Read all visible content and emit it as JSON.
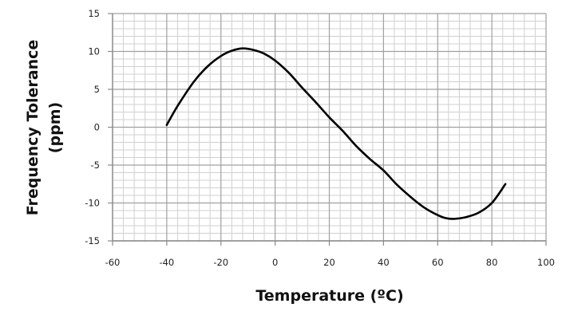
{
  "chart_data": {
    "type": "line",
    "title": "",
    "xlabel": "Temperature (ºC)",
    "ylabel_line1": "Frequency Tolerance",
    "ylabel_line2": "(ppm)",
    "xlim": [
      -60,
      100
    ],
    "ylim": [
      -15,
      15
    ],
    "x_ticks": [
      -60,
      -40,
      -20,
      0,
      20,
      40,
      60,
      80,
      100
    ],
    "y_ticks": [
      -15,
      -10,
      -5,
      0,
      5,
      10,
      15
    ],
    "x_tick_labels": [
      "-60",
      "-40",
      "-20",
      "0",
      "20",
      "40",
      "60",
      "80",
      "100"
    ],
    "y_tick_labels": [
      "-15",
      "-10",
      "-5",
      "0",
      "5",
      "10",
      "15"
    ],
    "grid": {
      "on": true,
      "x_major": 20,
      "x_minor": 4,
      "y_major": 5,
      "y_minor": 1
    },
    "legend": null,
    "series": [
      {
        "name": "Frequency Tolerance",
        "color": "#000000",
        "x": [
          -40,
          -36,
          -30,
          -25,
          -20,
          -16,
          -12,
          -8,
          -4,
          0,
          5,
          10,
          15,
          20,
          25,
          30,
          35,
          40,
          45,
          50,
          55,
          60,
          63,
          66,
          70,
          75,
          80,
          85
        ],
        "y": [
          0.3,
          2.8,
          6.0,
          8.0,
          9.4,
          10.1,
          10.4,
          10.2,
          9.7,
          8.8,
          7.2,
          5.2,
          3.3,
          1.3,
          -0.5,
          -2.5,
          -4.2,
          -5.7,
          -7.6,
          -9.2,
          -10.6,
          -11.6,
          -12.0,
          -12.1,
          -11.9,
          -11.3,
          -10.0,
          -7.5
        ]
      }
    ]
  },
  "colors": {
    "minor_grid": "#d0d0d0",
    "major_grid": "#a0a0a0",
    "axis": "#8a8a8a",
    "curve": "#000000"
  }
}
